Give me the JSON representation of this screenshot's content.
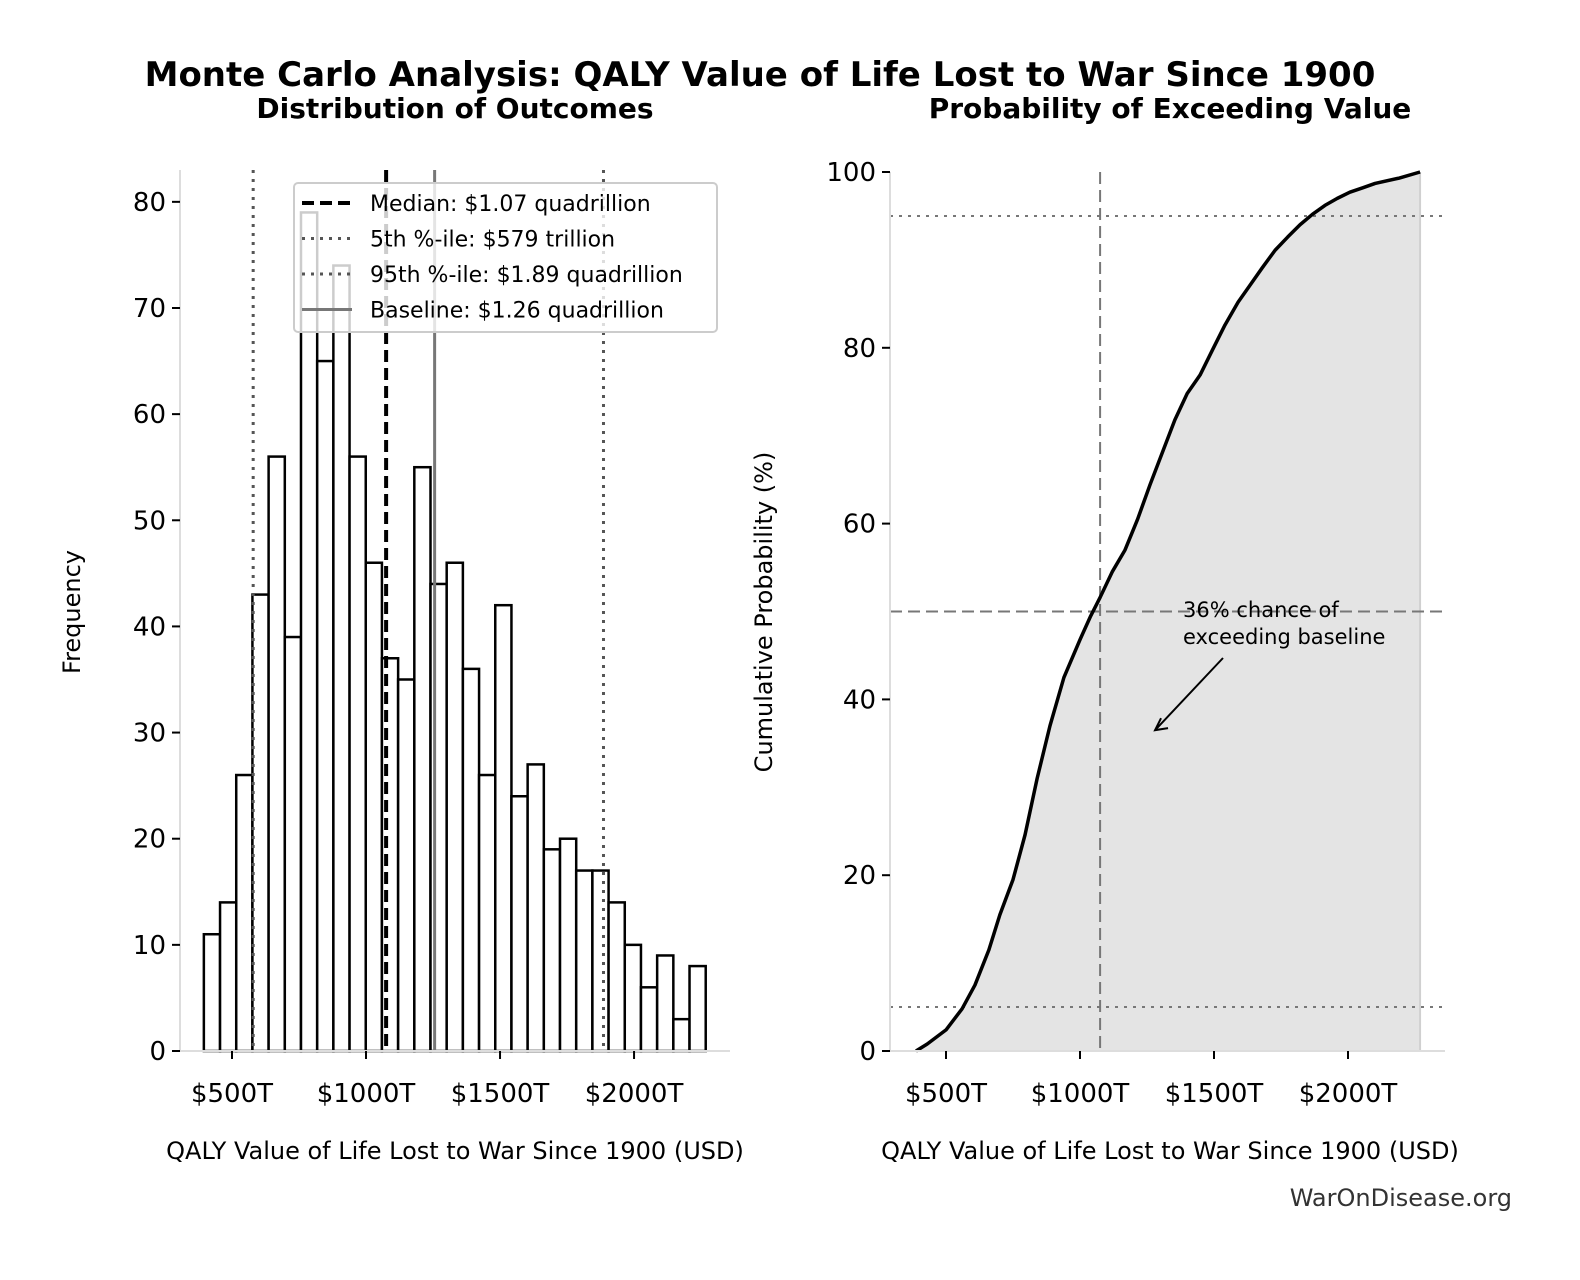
{
  "title": "Monte Carlo Analysis: QALY Value of Life Lost to War Since 1900",
  "watermark": "WarOnDisease.org",
  "colors": {
    "bar_edge": "#000000",
    "bar_fill": "#ffffff",
    "cdf_fill": "#e4e4e4",
    "ref_line": "#777777",
    "pct_line": "#555555"
  },
  "chart_data": [
    {
      "type": "bar",
      "title": "Distribution of Outcomes",
      "xlabel": "QALY Value of Life Lost to War Since 1900 (USD)",
      "ylabel": "Frequency",
      "xlim": [
        306,
        2358
      ],
      "ylim": [
        0,
        83
      ],
      "xticks": [
        500,
        1000,
        1500,
        2000
      ],
      "xtick_labels": [
        "$500T",
        "$1000T",
        "$1500T",
        "$2000T"
      ],
      "yticks": [
        0,
        10,
        20,
        30,
        40,
        50,
        60,
        70,
        80
      ],
      "bin_start": 395,
      "bin_width": 60.4,
      "values": [
        11,
        14,
        26,
        43,
        56,
        39,
        79,
        65,
        74,
        56,
        46,
        37,
        35,
        55,
        44,
        46,
        36,
        26,
        42,
        24,
        27,
        19,
        20,
        17,
        17,
        14,
        10,
        6,
        9,
        3,
        8
      ],
      "reference_lines": [
        {
          "label": "Median: $1.07 quadrillion",
          "x": 1075,
          "style": "dashed"
        },
        {
          "label": "5th %-ile: $579 trillion",
          "x": 579,
          "style": "dotted"
        },
        {
          "label": "95th %-ile: $1.89 quadrillion",
          "x": 1886,
          "style": "dotted"
        },
        {
          "label": "Baseline: $1.26 quadrillion",
          "x": 1256,
          "style": "solid"
        }
      ],
      "legend": "top-right",
      "grid": false
    },
    {
      "type": "area",
      "title": "Probability of Exceeding Value",
      "xlabel": "QALY Value of Life Lost to War Since 1900 (USD)",
      "ylabel": "Cumulative Probability (%)",
      "xlim": [
        291,
        2362
      ],
      "ylim": [
        0,
        100
      ],
      "xticks": [
        500,
        1000,
        1500,
        2000
      ],
      "xtick_labels": [
        "$500T",
        "$1000T",
        "$1500T",
        "$2000T"
      ],
      "yticks": [
        0,
        20,
        40,
        60,
        80,
        100
      ],
      "x": [
        388,
        430,
        500,
        560,
        608,
        660,
        701,
        750,
        795,
        840,
        888,
        940,
        1000,
        1040,
        1075,
        1120,
        1168,
        1215,
        1261,
        1310,
        1354,
        1400,
        1448,
        1495,
        1541,
        1590,
        1634,
        1680,
        1728,
        1775,
        1821,
        1868,
        1914,
        1960,
        2007,
        2055,
        2101,
        2190,
        2269
      ],
      "y": [
        0,
        0.8,
        2.4,
        4.8,
        7.5,
        11.5,
        15.5,
        19.5,
        24.6,
        31,
        37,
        42.5,
        46.8,
        49.5,
        51.6,
        54.5,
        57,
        60.5,
        64.4,
        68.3,
        71.8,
        74.8,
        76.9,
        79.8,
        82.6,
        85.2,
        87.1,
        89.1,
        91.1,
        92.6,
        94,
        95.2,
        96.2,
        97,
        97.7,
        98.2,
        98.7,
        99.3,
        100
      ],
      "hlines": [
        {
          "y": 50,
          "style": "dashed"
        },
        {
          "y": 5,
          "style": "dotted"
        },
        {
          "y": 95,
          "style": "dotted"
        }
      ],
      "vline": {
        "x": 1075,
        "style": "dashed"
      },
      "annotation": {
        "line1": "36% chance of",
        "line2": "exceeding baseline",
        "arrow_to": [
          1280,
          36.5
        ]
      },
      "grid": false
    }
  ]
}
